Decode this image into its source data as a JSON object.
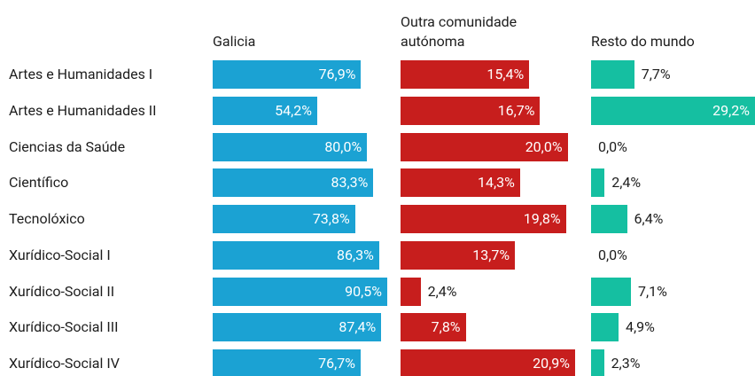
{
  "chart_data": {
    "type": "bar",
    "categories": [
      "Artes e Humanidades I",
      "Artes e Humanidades II",
      "Ciencias da Saúde",
      "Científico",
      "Tecnolóxico",
      "Xurídico-Social I",
      "Xurídico-Social II",
      "Xurídico-Social III",
      "Xurídico-Social IV"
    ],
    "series": [
      {
        "name": "Galicia",
        "color": "#1ba2d3",
        "values": [
          76.9,
          54.2,
          80.0,
          83.3,
          73.8,
          86.3,
          90.5,
          87.4,
          76.7
        ],
        "value_labels": [
          "76,9%",
          "54,2%",
          "80,0%",
          "83,3%",
          "73,8%",
          "86,3%",
          "90,5%",
          "87,4%",
          "76,7%"
        ]
      },
      {
        "name": "Outra comunidade autónoma",
        "color": "#c71e1d",
        "values": [
          15.4,
          16.7,
          20.0,
          14.3,
          19.8,
          13.7,
          2.4,
          7.8,
          20.9
        ],
        "value_labels": [
          "15,4%",
          "16,7%",
          "20,0%",
          "14,3%",
          "19,8%",
          "13,7%",
          "2,4%",
          "7,8%",
          "20,9%"
        ]
      },
      {
        "name": "Resto do mundo",
        "color": "#15bfa1",
        "values": [
          7.7,
          29.2,
          0.0,
          2.4,
          6.4,
          0.0,
          7.1,
          4.9,
          2.3
        ],
        "value_labels": [
          "7,7%",
          "29,2%",
          "0,0%",
          "2,4%",
          "6,4%",
          "0,0%",
          "7,1%",
          "4,9%",
          "2,3%"
        ]
      }
    ]
  }
}
